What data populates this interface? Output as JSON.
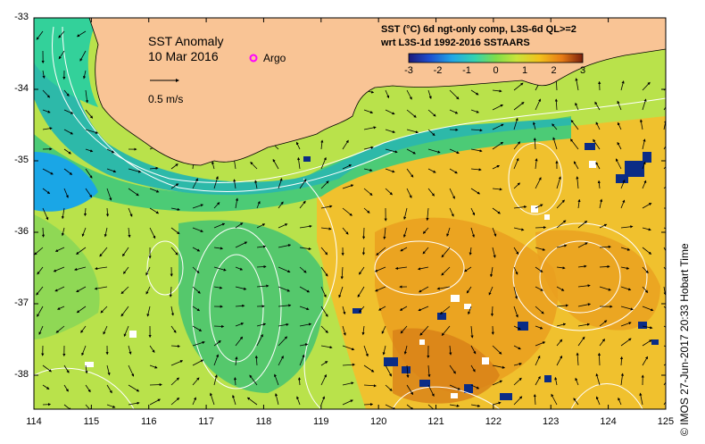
{
  "map": {
    "title": "SST Anomaly",
    "date": "10 Mar 2016",
    "argo_label": "Argo",
    "scale_label": "0.5 m/s",
    "info_line1": "SST (°C) 6d ngt-only comp, L3S-6d QL>=2",
    "info_line2": "wrt L3S-1d 1992-2016 SSTAARS",
    "colorbar_ticks": [
      "-3",
      "-2",
      "-1",
      "0",
      "1",
      "2",
      "3"
    ],
    "y_ticks": [
      "-33",
      "-34",
      "-35",
      "-36",
      "-37",
      "-38"
    ],
    "x_ticks": [
      "114",
      "115",
      "116",
      "117",
      "118",
      "119",
      "120",
      "121",
      "122",
      "123",
      "124",
      "125"
    ],
    "credit": "© IMOS 27-Jun-2017 20:33 Hobart Time",
    "colors": {
      "land": "#f9c495",
      "argo": "#ff00ff",
      "gulf": "#33d19a",
      "jet": "#2db9a9",
      "cold": "#1aa6e6",
      "neutral": "#b6e14a",
      "green": "#5bcf6d",
      "warm": "#f2a51e",
      "hot": "#d88a1a",
      "deep_blue": "#0a2c86",
      "contour": "#ffffff"
    }
  }
}
